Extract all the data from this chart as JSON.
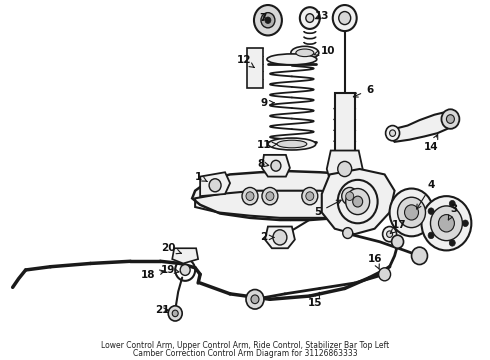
{
  "bg_color": "#ffffff",
  "line_color": "#1a1a1a",
  "fill_light": "#f0f0f0",
  "fill_mid": "#d8d8d8",
  "fill_dark": "#b0b0b0",
  "text_color": "#111111",
  "fig_width": 4.9,
  "fig_height": 3.6,
  "dpi": 100,
  "bottom_text1": "Lower Control Arm, Upper Control Arm, Ride Control, Stabilizer Bar Top Left",
  "bottom_text2": "Camber Correction Control Arm Diagram for 31126863333"
}
